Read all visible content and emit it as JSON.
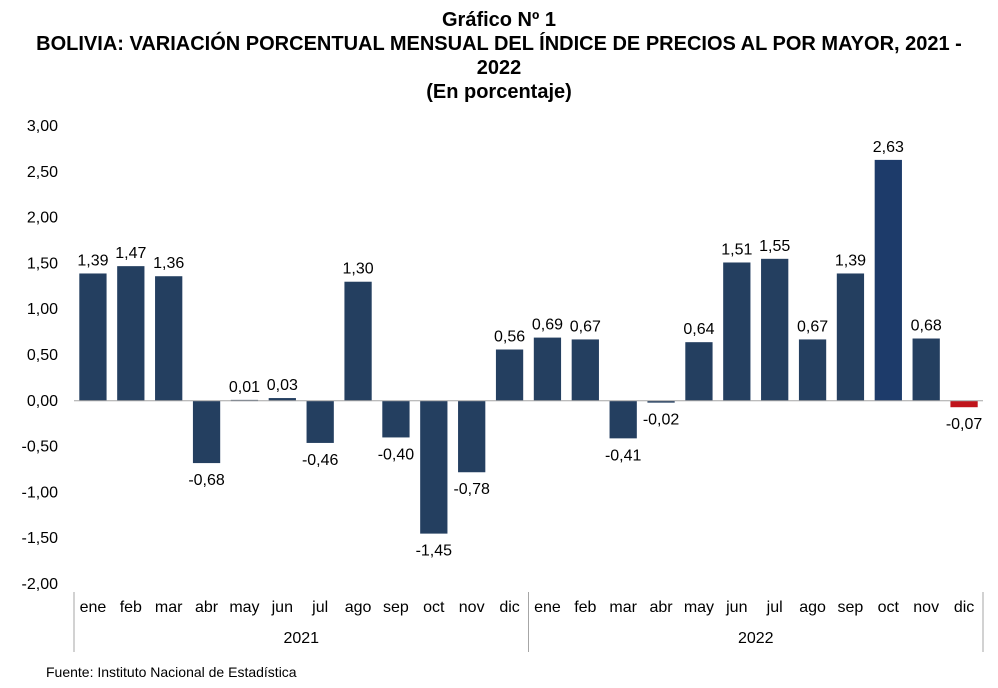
{
  "header": {
    "figure_label": "Gráfico Nº 1",
    "title": "BOLIVIA: VARIACIÓN PORCENTUAL MENSUAL DEL ÍNDICE DE PRECIOS AL POR MAYOR, 2021 - 2022",
    "subtitle": "(En porcentaje)"
  },
  "source": "Fuente: Instituto Nacional de Estadística",
  "colors": {
    "bar": "#243f60",
    "bar_highlight": "#1d3b6a",
    "negative_last": "#c0141b",
    "axis": "#a6a6a6"
  },
  "chart_data": {
    "type": "bar",
    "categories": [
      "ene",
      "feb",
      "mar",
      "abr",
      "may",
      "jun",
      "jul",
      "ago",
      "sep",
      "oct",
      "nov",
      "dic",
      "ene",
      "feb",
      "mar",
      "abr",
      "may",
      "jun",
      "jul",
      "ago",
      "sep",
      "oct",
      "nov",
      "dic"
    ],
    "groups": [
      {
        "label": "2021",
        "start": 0,
        "end": 11
      },
      {
        "label": "2022",
        "start": 12,
        "end": 23
      }
    ],
    "series": [
      {
        "values": [
          1.39,
          1.47,
          1.36,
          -0.68,
          0.01,
          0.03,
          -0.46,
          1.3,
          -0.4,
          -1.45,
          -0.78,
          0.56,
          0.69,
          0.67,
          -0.41,
          -0.02,
          0.64,
          1.51,
          1.55,
          0.67,
          1.39,
          2.63,
          0.68,
          -0.07
        ]
      }
    ],
    "data_labels": [
      "1,39",
      "1,47",
      "1,36",
      "-0,68",
      "0,01",
      "0,03",
      "-0,46",
      "1,30",
      "-0,40",
      "-1,45",
      "-0,78",
      "0,56",
      "0,69",
      "0,67",
      "-0,41",
      "-0,02",
      "0,64",
      "1,51",
      "1,55",
      "0,67",
      "1,39",
      "2,63",
      "0,68",
      "-0,07"
    ],
    "ylim": [
      -2.0,
      3.0
    ],
    "yticks": [
      3.0,
      2.5,
      2.0,
      1.5,
      1.0,
      0.5,
      0.0,
      -0.5,
      -1.0,
      -1.5,
      -2.0
    ],
    "ytick_labels": [
      "3,00",
      "2,50",
      "2,00",
      "1,50",
      "1,00",
      "0,50",
      "0,00",
      "-0,50",
      "-1,00",
      "-1,50",
      "-2,00"
    ],
    "grid": false,
    "legend": "none"
  }
}
